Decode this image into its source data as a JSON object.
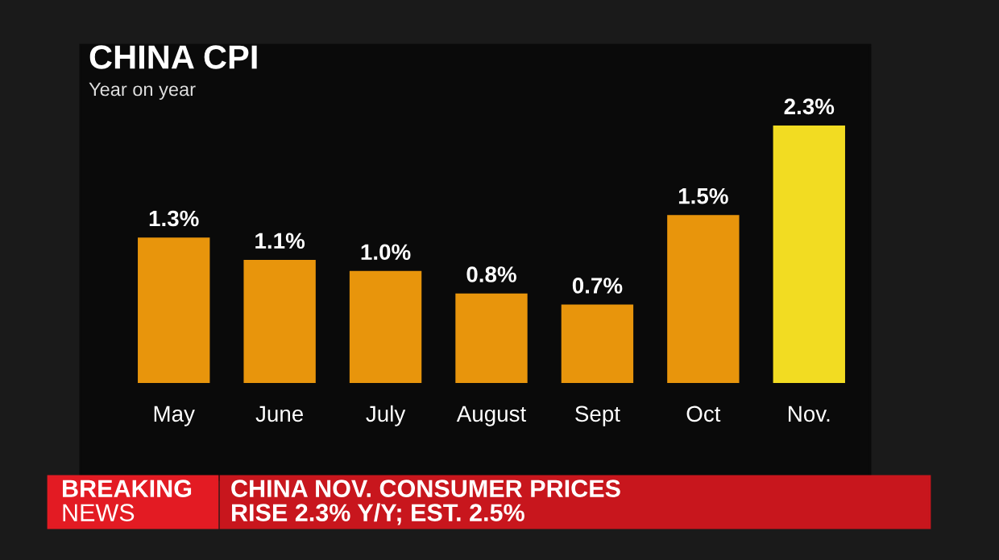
{
  "chart_data": {
    "type": "bar",
    "title": "CHINA CPI",
    "subtitle": "Year on year",
    "categories": [
      "May",
      "June",
      "July",
      "August",
      "Sept",
      "Oct",
      "Nov."
    ],
    "values": [
      1.3,
      1.1,
      1.0,
      0.8,
      0.7,
      1.5,
      2.3
    ],
    "colors": [
      "#e8950c",
      "#e8950c",
      "#e8950c",
      "#e8950c",
      "#e8950c",
      "#e8950c",
      "#f2dc22"
    ],
    "value_labels": [
      "1.3%",
      "1.1%",
      "1.0%",
      "0.8%",
      "0.7%",
      "1.5%",
      "2.3%"
    ],
    "tick_labels": "x",
    "annotations": [
      "BREAKING",
      "NEWS",
      "CHINA NOV. CONSUMER PRICES",
      "RISE 2.3% Y/Y; EST. 2.5%"
    ]
  }
}
